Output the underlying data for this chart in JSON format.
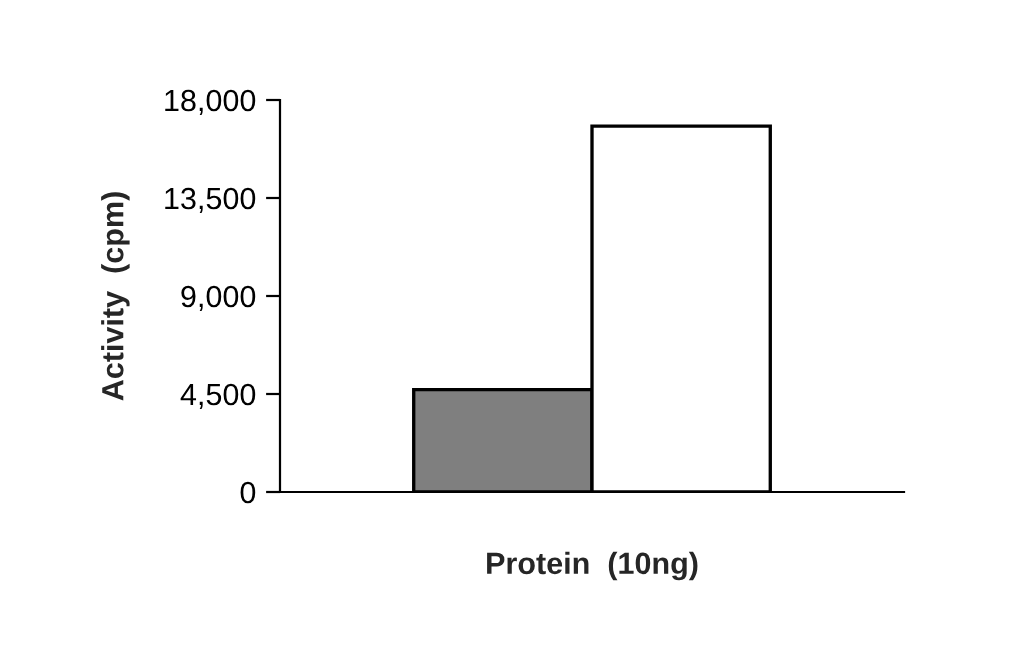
{
  "chart_data": {
    "type": "bar",
    "xlabel": "Protein  (10ng)",
    "ylabel": "Activity  (cpm)",
    "categories": [
      null,
      null
    ],
    "values": [
      4700,
      16800
    ],
    "colors": [
      "#7f7f7f",
      "#ffffff"
    ],
    "ylim": [
      0,
      18000
    ],
    "yticks": [
      {
        "value": 0,
        "label": "0"
      },
      {
        "value": 4500,
        "label": "4,500"
      },
      {
        "value": 9000,
        "label": "9,000"
      },
      {
        "value": 13500,
        "label": "13,500"
      },
      {
        "value": 18000,
        "label": "18,000"
      }
    ],
    "grid": false,
    "legend": false
  }
}
